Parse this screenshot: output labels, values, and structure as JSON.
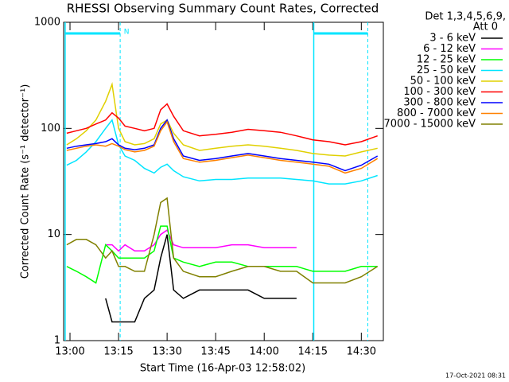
{
  "chart_data": {
    "type": "line",
    "title": "RHESSI Observing Summary Count Rates, Corrected",
    "xlabel": "Start Time (16-Apr-03 12:58:02)",
    "ylabel": "Corrected Count Rate (s⁻¹ detector⁻¹)",
    "legend_header": [
      "Det 1,3,4,5,6,9,",
      "Att 0"
    ],
    "footer": "17-Oct-2021 08:31",
    "log_y": true,
    "xlim": [
      778.03,
      876.8
    ],
    "ylim": [
      1,
      1000
    ],
    "yticks": [
      1,
      10,
      100,
      1000
    ],
    "xticks": [
      {
        "value": 780,
        "label": "13:00"
      },
      {
        "value": 795,
        "label": "13:15"
      },
      {
        "value": 810,
        "label": "13:30"
      },
      {
        "value": 825,
        "label": "13:45"
      },
      {
        "value": 840,
        "label": "14:00"
      },
      {
        "value": 855,
        "label": "14:15"
      },
      {
        "value": 870,
        "label": "14:30"
      }
    ],
    "night_label": "N",
    "night_color": "#00e5ff",
    "night_intervals": [
      [
        778.5,
        795.5
      ],
      [
        855.3,
        872.0
      ]
    ],
    "x": [
      779,
      782,
      785,
      788,
      791,
      793,
      795,
      797,
      800,
      803,
      806,
      808,
      810,
      812,
      815,
      820,
      825,
      830,
      835,
      840,
      845,
      850,
      855,
      860,
      865,
      870,
      875
    ],
    "series": [
      {
        "name": "3 - 6 keV",
        "color": "#000000",
        "values": [
          null,
          null,
          null,
          null,
          2.5,
          1.5,
          1.5,
          1.5,
          1.5,
          2.5,
          3,
          6,
          10,
          3,
          2.5,
          3,
          3,
          3,
          3,
          2.5,
          2.5,
          2.5,
          null,
          null,
          null,
          null,
          null
        ]
      },
      {
        "name": "6 - 12 keV",
        "color": "#ff00ff",
        "values": [
          null,
          null,
          null,
          null,
          8,
          8,
          7,
          8,
          7,
          7,
          8,
          10,
          11,
          8,
          7.5,
          7.5,
          7.5,
          8,
          8,
          7.5,
          7.5,
          7.5,
          null,
          null,
          null,
          null,
          null
        ]
      },
      {
        "name": "12 - 25 keV",
        "color": "#00ff00",
        "values": [
          5,
          4.5,
          4,
          3.5,
          8,
          7,
          6,
          6,
          6,
          6,
          7,
          12,
          12,
          6,
          5.5,
          5,
          5.5,
          5.5,
          5,
          5,
          5,
          5,
          4.5,
          4.5,
          4.5,
          5,
          5
        ]
      },
      {
        "name": "25 - 50 keV",
        "color": "#00e5ff",
        "values": [
          45,
          50,
          60,
          75,
          100,
          120,
          70,
          55,
          50,
          42,
          38,
          43,
          46,
          40,
          35,
          32,
          33,
          33,
          34,
          34,
          34,
          33,
          32,
          30,
          30,
          32,
          36
        ]
      },
      {
        "name": "50 - 100 keV",
        "color": "#e0d000",
        "values": [
          70,
          80,
          95,
          120,
          180,
          260,
          100,
          75,
          70,
          72,
          80,
          110,
          120,
          90,
          70,
          62,
          65,
          68,
          70,
          68,
          65,
          62,
          58,
          56,
          55,
          60,
          65
        ]
      },
      {
        "name": "100 - 300 keV",
        "color": "#ff0000",
        "values": [
          90,
          95,
          100,
          110,
          120,
          140,
          125,
          105,
          100,
          95,
          100,
          150,
          170,
          130,
          95,
          85,
          88,
          92,
          98,
          95,
          92,
          85,
          78,
          75,
          70,
          75,
          85
        ]
      },
      {
        "name": "300 - 800 keV",
        "color": "#0000ff",
        "values": [
          65,
          68,
          70,
          72,
          75,
          80,
          70,
          65,
          63,
          65,
          70,
          100,
          120,
          80,
          55,
          50,
          52,
          55,
          58,
          55,
          52,
          50,
          48,
          46,
          40,
          45,
          55
        ]
      },
      {
        "name": "800 - 7000 keV",
        "color": "#ff8000",
        "values": [
          62,
          65,
          68,
          70,
          68,
          72,
          68,
          63,
          60,
          62,
          68,
          95,
          115,
          75,
          52,
          48,
          50,
          53,
          56,
          53,
          50,
          48,
          46,
          44,
          38,
          42,
          52
        ]
      },
      {
        "name": "7000 - 15000 keV",
        "color": "#808000",
        "values": [
          8,
          9,
          9,
          8,
          6,
          7,
          5,
          5,
          4.5,
          4.5,
          10,
          20,
          22,
          6,
          4.5,
          4,
          4,
          4.5,
          5,
          5,
          4.5,
          4.5,
          3.5,
          3.5,
          3.5,
          4,
          5
        ]
      }
    ]
  }
}
